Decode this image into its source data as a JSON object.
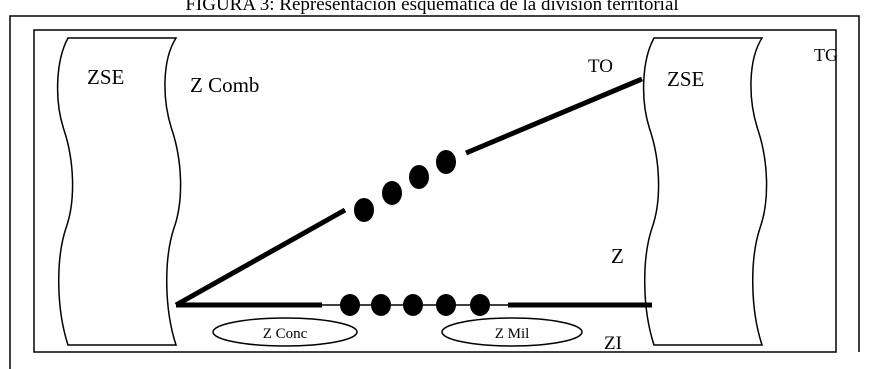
{
  "figure": {
    "caption": "FIGURA 3: Representación esquemática de la división territorial"
  },
  "labels": {
    "zse_left": "ZSE",
    "zse_right": "ZSE",
    "z_comb": "Z Comb",
    "to": "TO",
    "tg": "TG",
    "z": "Z",
    "zi": "ZI",
    "z_conc": "Z Conc",
    "z_mil": "Z Mil"
  },
  "colors": {
    "ink": "#000000",
    "paper": "#ffffff"
  }
}
